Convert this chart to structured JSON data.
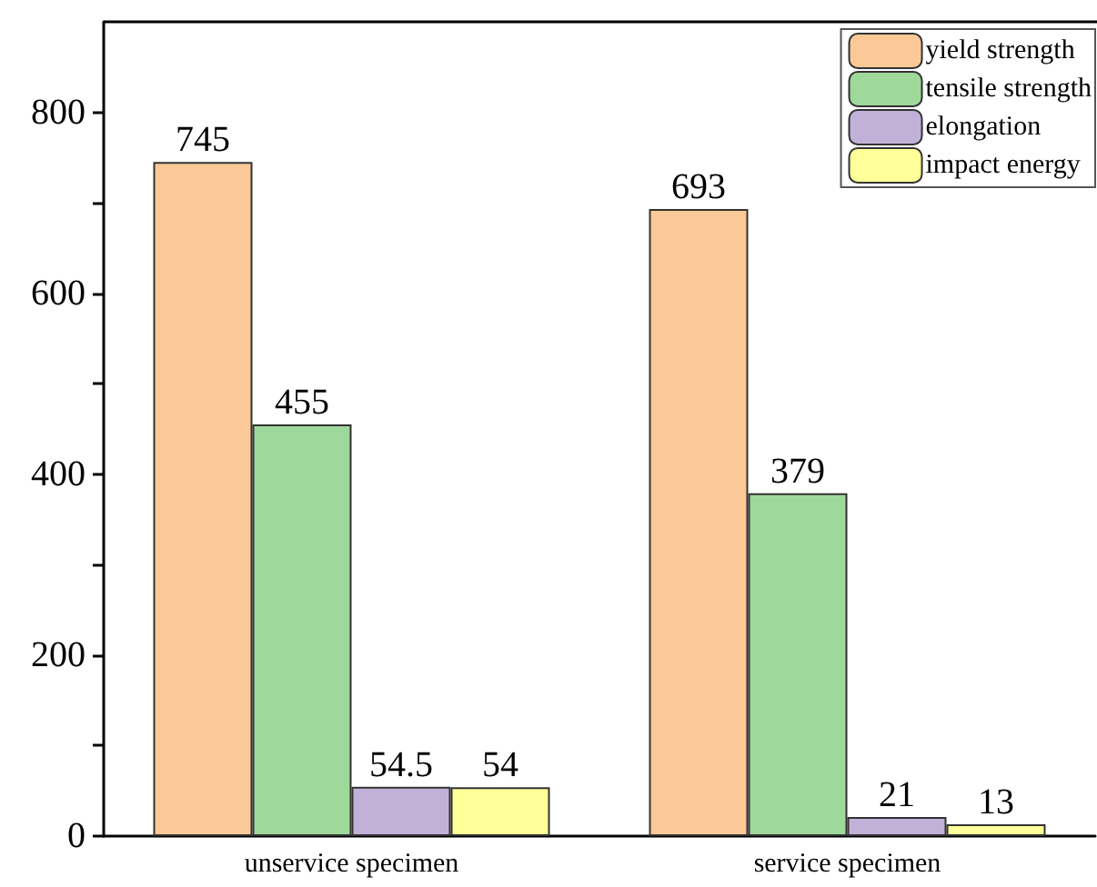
{
  "chart_data": {
    "type": "bar",
    "categories": [
      "unservice specimen",
      "service specimen"
    ],
    "series": [
      {
        "name": "yield strength",
        "color": "#fbc897",
        "values": [
          745,
          693
        ]
      },
      {
        "name": "tensile strength",
        "color": "#9fd89b",
        "values": [
          455,
          379
        ]
      },
      {
        "name": "elongation",
        "color": "#c1b1d9",
        "values": [
          54.5,
          21
        ]
      },
      {
        "name": "impact energy",
        "color": "#ffff99",
        "values": [
          54,
          13
        ]
      }
    ],
    "ylim": [
      0,
      900
    ],
    "yticks": [
      0,
      {
        "value": 100,
        "label": null
      },
      200,
      {
        "value": 300,
        "label": null
      },
      400,
      {
        "value": 500,
        "label": null
      },
      600,
      {
        "value": 700,
        "label": null
      },
      800
    ],
    "data_labels": true,
    "legend": "top right",
    "grid": false
  }
}
